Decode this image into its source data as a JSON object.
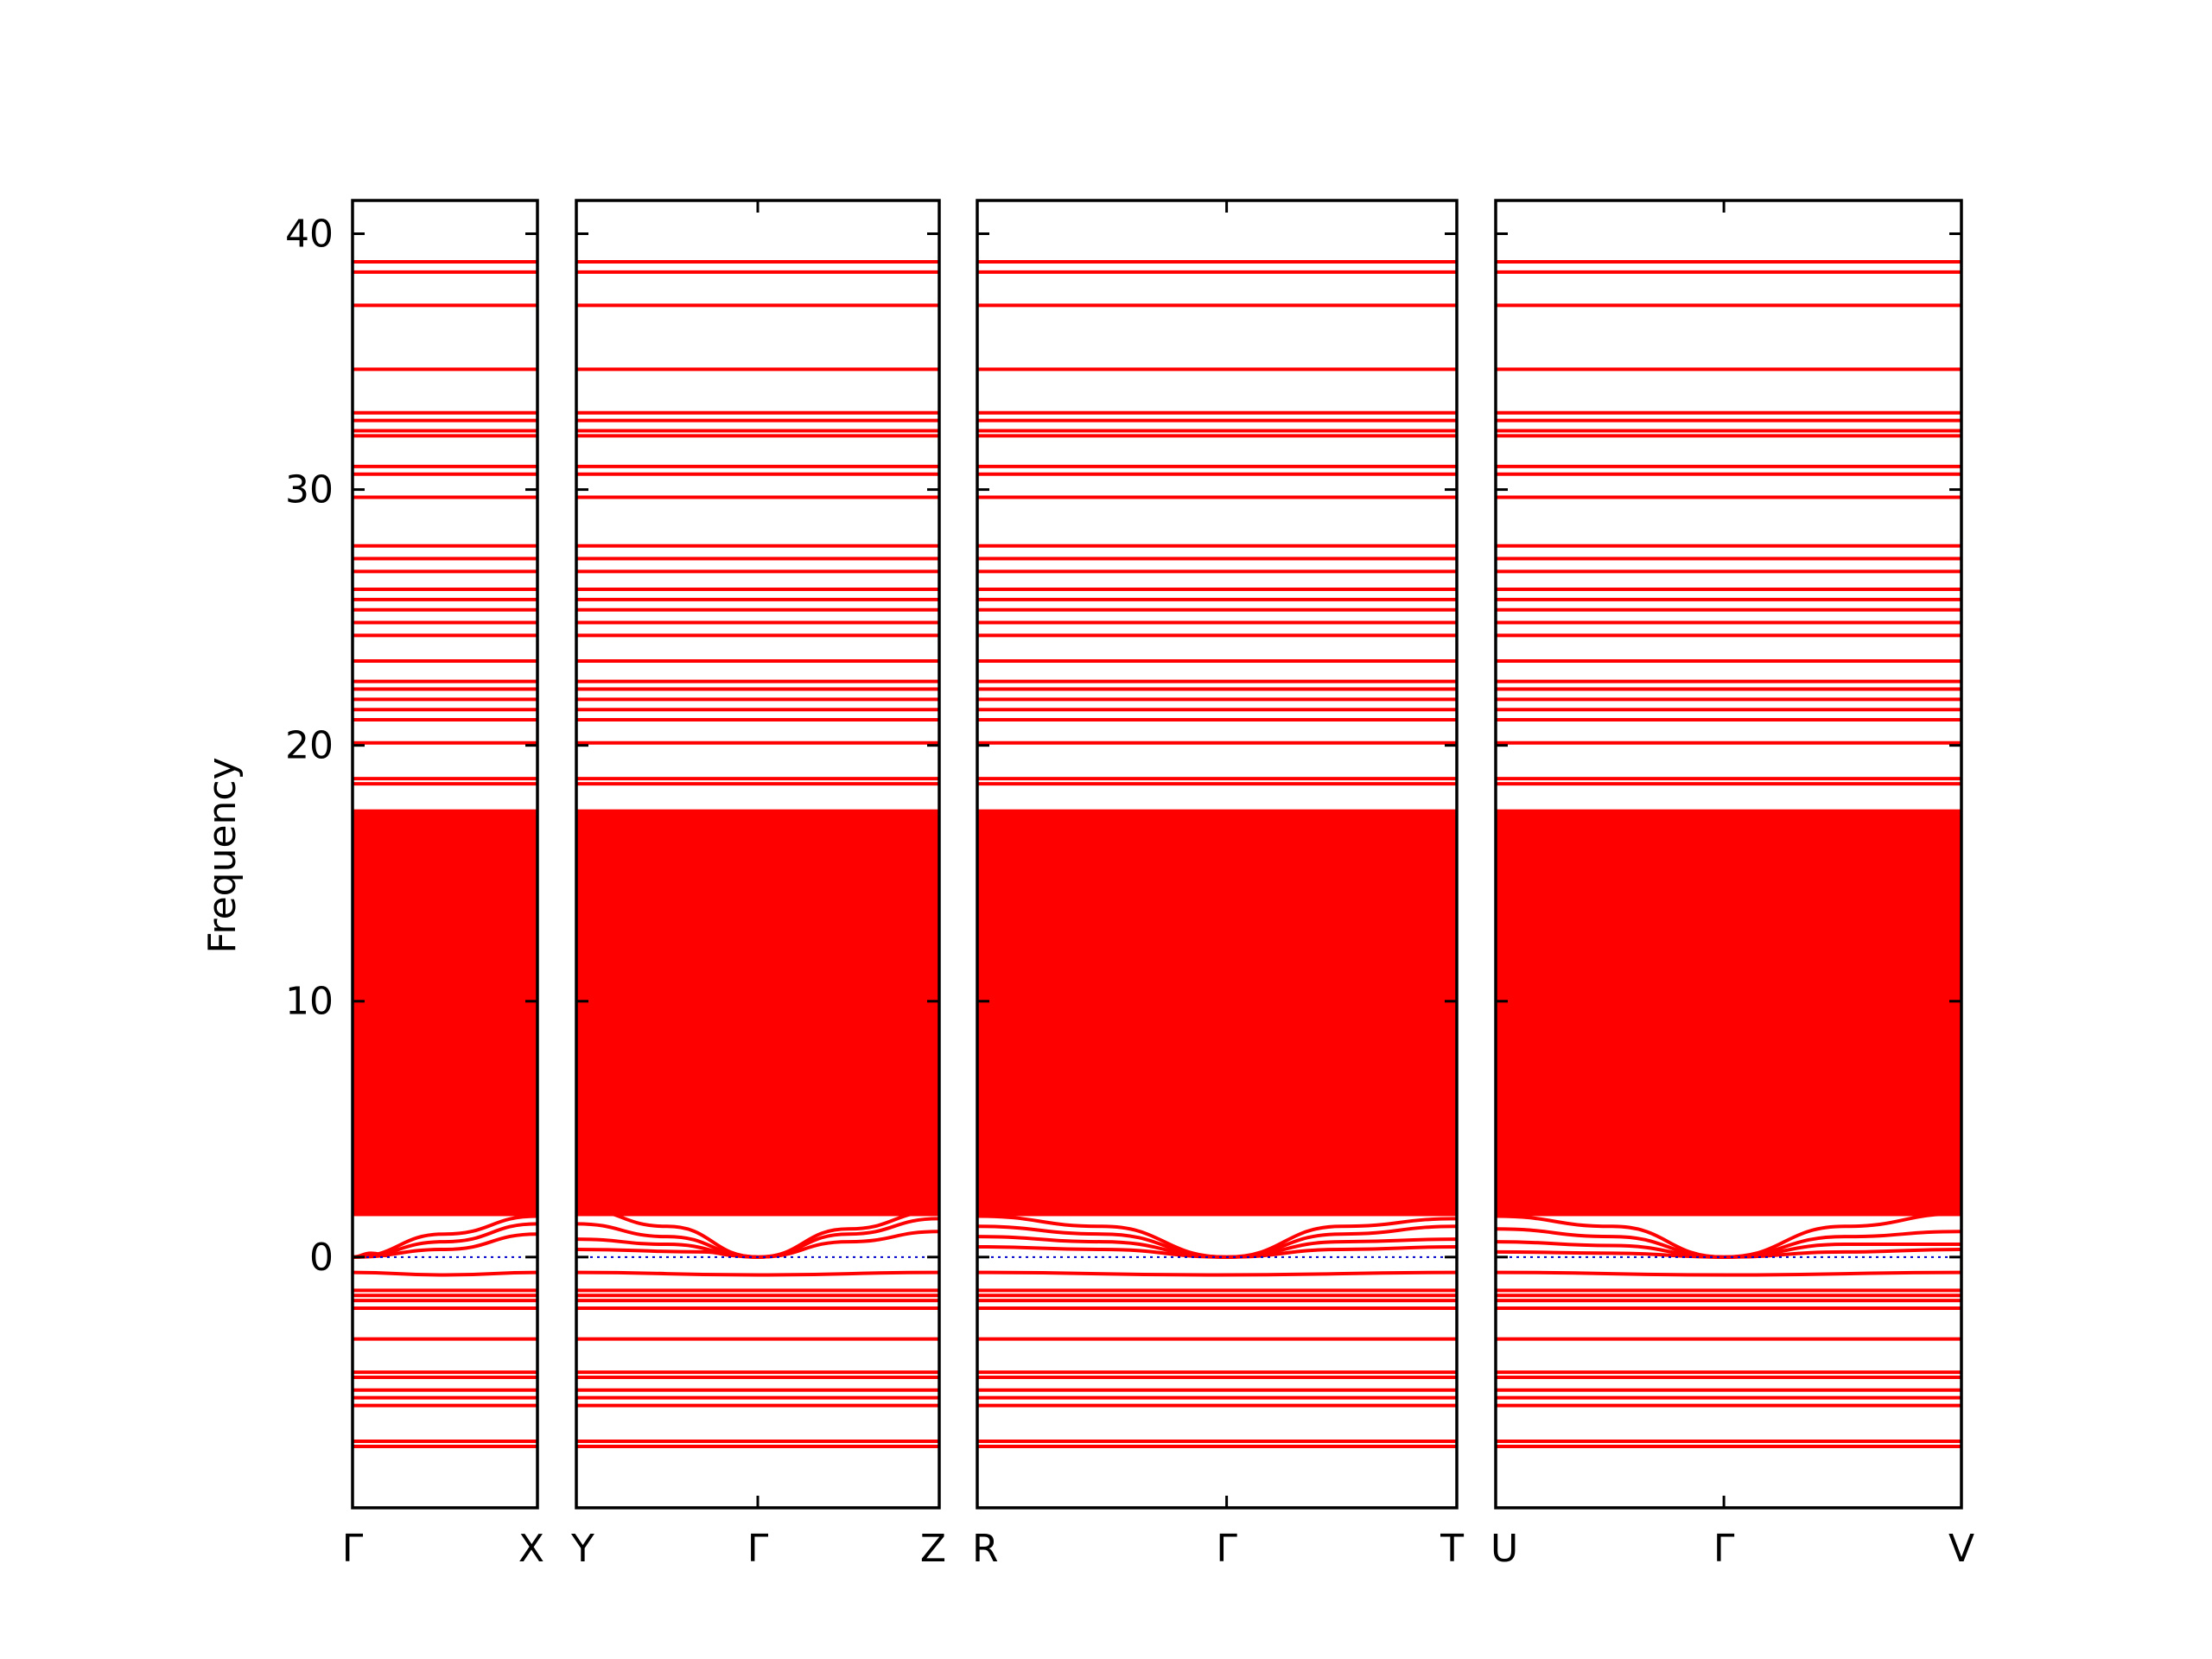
{
  "chart_data": {
    "type": "line",
    "title": "",
    "xlabel": "",
    "ylabel": "Frequency",
    "ylim": [
      -9.8,
      41.3
    ],
    "yticks": [
      0,
      10,
      20,
      30,
      40
    ],
    "grid": false,
    "legend": "none",
    "colors": {
      "band": "#ff0000",
      "zero_line": "#0000cc",
      "frame": "#000000"
    },
    "dense_block": {
      "from": 1.6,
      "to": 17.5
    },
    "panels": [
      {
        "id": "p1",
        "tick_labels": [
          "Γ",
          "X"
        ],
        "tick_fracs": [
          0,
          1
        ],
        "flat_bands": [
          38.9,
          38.5,
          37.2,
          34.7,
          33.0,
          32.7,
          32.3,
          32.1,
          30.9,
          30.6,
          29.7,
          27.8,
          27.3,
          26.8,
          26.1,
          25.7,
          25.3,
          24.8,
          24.3,
          23.3,
          22.5,
          22.2,
          21.8,
          21.4,
          21.0,
          20.1,
          18.7,
          18.5,
          -1.3,
          -1.5,
          -1.7,
          -2.0,
          -3.2,
          -4.5,
          -4.7,
          -5.2,
          -5.5,
          -5.8,
          -7.2,
          -7.4
        ],
        "curves": [
          {
            "x": [
              0,
              0.5,
              1
            ],
            "y": [
              0,
              0.9,
              1.6
            ]
          },
          {
            "x": [
              0,
              0.5,
              1
            ],
            "y": [
              0,
              0.6,
              1.3
            ]
          },
          {
            "x": [
              0,
              0.5,
              1
            ],
            "y": [
              0,
              0.3,
              0.9
            ]
          },
          {
            "x": [
              0,
              0.1,
              0.2
            ],
            "y": [
              0,
              0.15,
              0.05
            ]
          },
          {
            "x": [
              0,
              0.5,
              1
            ],
            "y": [
              -0.6,
              -0.7,
              -0.6
            ]
          },
          {
            "x": [
              0,
              0.5,
              1
            ],
            "y": [
              2.0,
              2.2,
              2.4
            ]
          }
        ]
      },
      {
        "id": "p2",
        "tick_labels": [
          "Y",
          "Γ",
          "Z"
        ],
        "tick_fracs": [
          0,
          0.5,
          1
        ],
        "flat_bands": [
          38.9,
          38.5,
          37.2,
          34.7,
          33.0,
          32.7,
          32.3,
          32.1,
          30.9,
          30.6,
          29.7,
          27.8,
          27.3,
          26.8,
          26.1,
          25.7,
          25.3,
          24.8,
          24.3,
          23.3,
          22.5,
          22.2,
          21.8,
          21.4,
          21.0,
          20.1,
          18.7,
          18.5,
          -1.3,
          -1.5,
          -1.7,
          -2.0,
          -3.2,
          -4.5,
          -4.7,
          -5.2,
          -5.5,
          -5.8,
          -7.2,
          -7.4
        ],
        "curves": [
          {
            "x": [
              0,
              0.25,
              0.5,
              0.75,
              1
            ],
            "y": [
              1.9,
              1.2,
              0,
              1.1,
              1.8
            ]
          },
          {
            "x": [
              0,
              0.25,
              0.5,
              0.75,
              1
            ],
            "y": [
              1.3,
              0.8,
              0,
              0.9,
              1.5
            ]
          },
          {
            "x": [
              0,
              0.25,
              0.5,
              0.75,
              1
            ],
            "y": [
              0.7,
              0.5,
              0,
              0.6,
              1.0
            ]
          },
          {
            "x": [
              0,
              0.35,
              0.45,
              0.5
            ],
            "y": [
              0.3,
              0.2,
              0.05,
              0
            ]
          },
          {
            "x": [
              0,
              0.5,
              1
            ],
            "y": [
              -0.6,
              -0.7,
              -0.6
            ]
          },
          {
            "x": [
              0,
              0.5,
              1
            ],
            "y": [
              2.0,
              2.2,
              2.0
            ]
          }
        ]
      },
      {
        "id": "p3",
        "tick_labels": [
          "R",
          "Γ",
          "T"
        ],
        "tick_fracs": [
          0,
          0.52,
          1
        ],
        "flat_bands": [
          38.9,
          38.5,
          37.2,
          34.7,
          33.0,
          32.7,
          32.3,
          32.1,
          30.9,
          30.6,
          29.7,
          27.8,
          27.3,
          26.8,
          26.1,
          25.7,
          25.3,
          24.8,
          24.3,
          23.3,
          22.5,
          22.2,
          21.8,
          21.4,
          21.0,
          20.1,
          18.7,
          18.5,
          -1.3,
          -1.5,
          -1.7,
          -2.0,
          -3.2,
          -4.5,
          -4.7,
          -5.2,
          -5.5,
          -5.8,
          -7.2,
          -7.4
        ],
        "curves": [
          {
            "x": [
              0,
              0.26,
              0.52,
              0.76,
              1
            ],
            "y": [
              1.6,
              1.2,
              0,
              1.2,
              1.5
            ]
          },
          {
            "x": [
              0,
              0.26,
              0.52,
              0.76,
              1
            ],
            "y": [
              1.2,
              0.9,
              0,
              0.9,
              1.2
            ]
          },
          {
            "x": [
              0,
              0.26,
              0.52,
              0.76,
              1
            ],
            "y": [
              0.8,
              0.6,
              0,
              0.6,
              0.7
            ]
          },
          {
            "x": [
              0,
              0.26,
              0.52,
              0.76,
              1
            ],
            "y": [
              0.4,
              0.3,
              0,
              0.3,
              0.4
            ]
          },
          {
            "x": [
              0,
              0.5,
              1
            ],
            "y": [
              -0.6,
              -0.7,
              -0.6
            ]
          },
          {
            "x": [
              0,
              0.5,
              1
            ],
            "y": [
              2.0,
              2.2,
              2.1
            ]
          }
        ]
      },
      {
        "id": "p4",
        "tick_labels": [
          "U",
          "Γ",
          "V"
        ],
        "tick_fracs": [
          0,
          0.49,
          1
        ],
        "flat_bands": [
          38.9,
          38.5,
          37.2,
          34.7,
          33.0,
          32.7,
          32.3,
          32.1,
          30.9,
          30.6,
          29.7,
          27.8,
          27.3,
          26.8,
          26.1,
          25.7,
          25.3,
          24.8,
          24.3,
          23.3,
          22.5,
          22.2,
          21.8,
          21.4,
          21.0,
          20.1,
          18.7,
          18.5,
          -1.3,
          -1.5,
          -1.7,
          -2.0,
          -3.2,
          -4.5,
          -4.7,
          -5.2,
          -5.5,
          -5.8,
          -7.2,
          -7.4
        ],
        "curves": [
          {
            "x": [
              0,
              0.25,
              0.49,
              0.75,
              1
            ],
            "y": [
              1.6,
              1.2,
              0,
              1.2,
              1.7
            ]
          },
          {
            "x": [
              0,
              0.25,
              0.49,
              0.75,
              1
            ],
            "y": [
              1.1,
              0.8,
              0,
              0.8,
              1.0
            ]
          },
          {
            "x": [
              0,
              0.25,
              0.49,
              0.75,
              1
            ],
            "y": [
              0.6,
              0.45,
              0,
              0.5,
              0.5
            ]
          },
          {
            "x": [
              0,
              0.25,
              0.49,
              0.75,
              1
            ],
            "y": [
              0.2,
              0.15,
              0,
              0.2,
              0.3
            ]
          },
          {
            "x": [
              0,
              0.5,
              1
            ],
            "y": [
              -0.6,
              -0.7,
              -0.6
            ]
          },
          {
            "x": [
              0,
              0.5,
              1
            ],
            "y": [
              2.0,
              2.2,
              2.1
            ]
          }
        ]
      }
    ]
  }
}
